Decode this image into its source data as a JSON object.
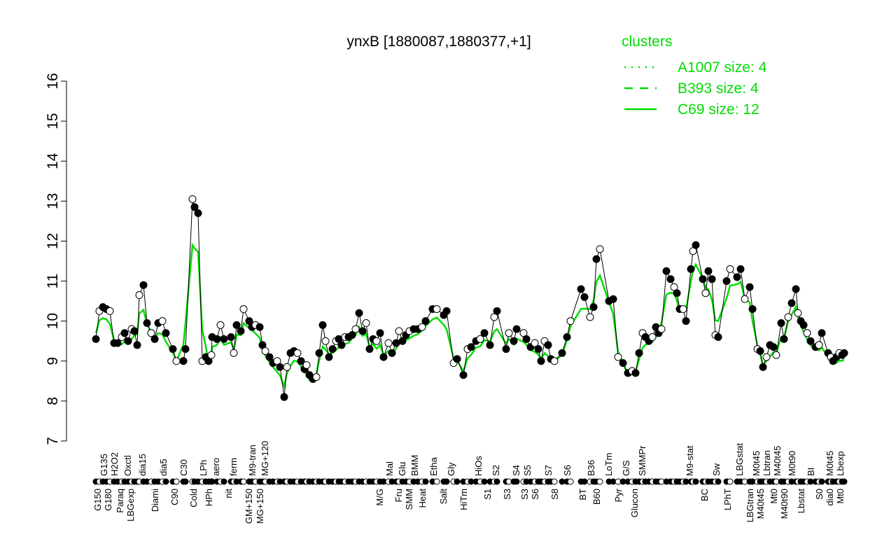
{
  "chart_data": {
    "type": "line",
    "title": "ynxB [1880087,1880377,+1]",
    "xlabel": "",
    "ylabel": "",
    "ylim": [
      7,
      16
    ],
    "yticks": [
      7,
      8,
      9,
      10,
      11,
      12,
      13,
      14,
      15,
      16
    ],
    "xlim": [
      0,
      1080
    ],
    "grid": false,
    "legend": {
      "title": "clusters",
      "placement": "top-right",
      "entries": [
        {
          "label": "A1007 size: 4",
          "style": "dotted"
        },
        {
          "label": "B393 size: 4",
          "style": "dashed"
        },
        {
          "label": "C69 size: 12",
          "style": "solid"
        }
      ]
    },
    "colors": {
      "cluster": "#00dd00",
      "points": "#000000"
    },
    "points": [
      [
        5,
        9.55
      ],
      [
        10,
        10.25
      ],
      [
        15,
        10.35
      ],
      [
        20,
        10.3
      ],
      [
        25,
        10.25
      ],
      [
        31,
        9.45
      ],
      [
        36,
        9.45
      ],
      [
        42,
        9.6
      ],
      [
        46,
        9.7
      ],
      [
        51,
        9.5
      ],
      [
        56,
        9.8
      ],
      [
        60,
        9.75
      ],
      [
        64,
        9.4
      ],
      [
        67,
        10.65
      ],
      [
        73,
        10.9
      ],
      [
        78,
        9.95
      ],
      [
        84,
        9.7
      ],
      [
        89,
        9.55
      ],
      [
        94,
        9.95
      ],
      [
        100,
        10.0
      ],
      [
        105,
        9.7
      ],
      [
        115,
        9.3
      ],
      [
        120,
        9.0
      ],
      [
        130,
        9.0
      ],
      [
        133,
        9.3
      ],
      [
        143,
        13.05
      ],
      [
        146,
        12.85
      ],
      [
        151,
        12.7
      ],
      [
        157,
        9.0
      ],
      [
        162,
        9.1
      ],
      [
        166,
        9.0
      ],
      [
        170,
        9.15
      ],
      [
        171,
        9.6
      ],
      [
        178,
        9.55
      ],
      [
        183,
        9.9
      ],
      [
        188,
        9.55
      ],
      [
        198,
        9.6
      ],
      [
        202,
        9.2
      ],
      [
        206,
        9.9
      ],
      [
        212,
        9.75
      ],
      [
        216,
        10.3
      ],
      [
        224,
        10.0
      ],
      [
        228,
        9.85
      ],
      [
        233,
        9.9
      ],
      [
        239,
        9.85
      ],
      [
        243,
        9.4
      ],
      [
        247,
        9.25
      ],
      [
        253,
        9.1
      ],
      [
        258,
        8.95
      ],
      [
        264,
        9.0
      ],
      [
        268,
        8.85
      ],
      [
        274,
        8.1
      ],
      [
        278,
        8.85
      ],
      [
        283,
        9.2
      ],
      [
        288,
        9.25
      ],
      [
        293,
        9.2
      ],
      [
        298,
        9.0
      ],
      [
        303,
        8.8
      ],
      [
        306,
        8.9
      ],
      [
        310,
        8.65
      ],
      [
        315,
        8.55
      ],
      [
        320,
        8.6
      ],
      [
        324,
        9.2
      ],
      [
        329,
        9.9
      ],
      [
        333,
        9.5
      ],
      [
        338,
        9.1
      ],
      [
        343,
        9.3
      ],
      [
        348,
        9.5
      ],
      [
        352,
        9.55
      ],
      [
        356,
        9.4
      ],
      [
        361,
        9.6
      ],
      [
        366,
        9.6
      ],
      [
        371,
        9.65
      ],
      [
        376,
        9.8
      ],
      [
        381,
        10.2
      ],
      [
        386,
        9.75
      ],
      [
        391,
        9.95
      ],
      [
        396,
        9.3
      ],
      [
        401,
        9.55
      ],
      [
        406,
        9.5
      ],
      [
        411,
        9.7
      ],
      [
        416,
        9.1
      ],
      [
        423,
        9.45
      ],
      [
        428,
        9.2
      ],
      [
        434,
        9.45
      ],
      [
        438,
        9.75
      ],
      [
        443,
        9.5
      ],
      [
        448,
        9.65
      ],
      [
        453,
        9.75
      ],
      [
        459,
        9.8
      ],
      [
        465,
        9.8
      ],
      [
        471,
        9.85
      ],
      [
        476,
        10.0
      ],
      [
        486,
        10.3
      ],
      [
        492,
        10.3
      ],
      [
        502,
        10.15
      ],
      [
        506,
        10.25
      ],
      [
        516,
        8.95
      ],
      [
        521,
        9.05
      ],
      [
        530,
        8.65
      ],
      [
        536,
        9.3
      ],
      [
        541,
        9.35
      ],
      [
        548,
        9.5
      ],
      [
        554,
        9.55
      ],
      [
        560,
        9.7
      ],
      [
        568,
        9.4
      ],
      [
        574,
        10.1
      ],
      [
        578,
        10.25
      ],
      [
        591,
        9.3
      ],
      [
        595,
        9.7
      ],
      [
        602,
        9.5
      ],
      [
        606,
        9.8
      ],
      [
        616,
        9.7
      ],
      [
        620,
        9.55
      ],
      [
        626,
        9.35
      ],
      [
        632,
        9.45
      ],
      [
        637,
        9.3
      ],
      [
        641,
        9.0
      ],
      [
        646,
        9.5
      ],
      [
        651,
        9.4
      ],
      [
        655,
        9.05
      ],
      [
        660,
        9.0
      ],
      [
        671,
        9.2
      ],
      [
        678,
        9.6
      ],
      [
        683,
        10.0
      ],
      [
        698,
        10.8
      ],
      [
        703,
        10.6
      ],
      [
        711,
        10.1
      ],
      [
        716,
        10.35
      ],
      [
        720,
        11.55
      ],
      [
        725,
        11.8
      ],
      [
        738,
        10.5
      ],
      [
        744,
        10.55
      ],
      [
        751,
        9.1
      ],
      [
        758,
        8.95
      ],
      [
        765,
        8.7
      ],
      [
        771,
        8.75
      ],
      [
        776,
        8.7
      ],
      [
        781,
        9.2
      ],
      [
        786,
        9.7
      ],
      [
        790,
        9.6
      ],
      [
        795,
        9.5
      ],
      [
        800,
        9.6
      ],
      [
        805,
        9.85
      ],
      [
        809,
        9.7
      ],
      [
        813,
        9.8
      ],
      [
        820,
        11.25
      ],
      [
        826,
        11.05
      ],
      [
        831,
        10.85
      ],
      [
        835,
        10.7
      ],
      [
        839,
        10.3
      ],
      [
        844,
        10.3
      ],
      [
        848,
        10.0
      ],
      [
        855,
        11.3
      ],
      [
        858,
        11.75
      ],
      [
        862,
        11.9
      ],
      [
        872,
        11.05
      ],
      [
        876,
        10.7
      ],
      [
        880,
        11.25
      ],
      [
        885,
        11.05
      ],
      [
        890,
        9.65
      ],
      [
        894,
        9.6
      ],
      [
        906,
        11.0
      ],
      [
        911,
        11.3
      ],
      [
        921,
        11.1
      ],
      [
        926,
        11.3
      ],
      [
        932,
        10.55
      ],
      [
        939,
        10.85
      ],
      [
        943,
        10.3
      ],
      [
        950,
        9.3
      ],
      [
        954,
        9.25
      ],
      [
        958,
        8.85
      ],
      [
        963,
        9.1
      ],
      [
        968,
        9.4
      ],
      [
        973,
        9.35
      ],
      [
        977,
        9.15
      ],
      [
        984,
        9.95
      ],
      [
        988,
        9.55
      ],
      [
        994,
        10.1
      ],
      [
        999,
        10.45
      ],
      [
        1005,
        10.8
      ],
      [
        1008,
        10.2
      ],
      [
        1012,
        10.0
      ],
      [
        1016,
        9.9
      ],
      [
        1021,
        9.7
      ],
      [
        1026,
        9.5
      ],
      [
        1033,
        9.35
      ],
      [
        1038,
        9.4
      ],
      [
        1042,
        9.7
      ],
      [
        1051,
        9.2
      ],
      [
        1055,
        9.1
      ],
      [
        1058,
        9.0
      ],
      [
        1063,
        9.1
      ],
      [
        1067,
        9.2
      ],
      [
        1071,
        9.15
      ],
      [
        1074,
        9.2
      ]
    ],
    "xlabels_top": [
      [
        "G135",
        17
      ],
      [
        "H2O2",
        26
      ],
      [
        "Oxctl",
        51
      ],
      [
        "dia15",
        72
      ],
      [
        "dia5",
        102
      ],
      [
        "C30",
        131
      ],
      [
        "LPh",
        159
      ],
      [
        "aero",
        177
      ],
      [
        "ferm",
        202
      ],
      [
        "M9-tran",
        229
      ],
      [
        "MG+120",
        247
      ],
      [
        "Mal",
        425
      ],
      [
        "Glu",
        443
      ],
      [
        "BMM",
        461
      ],
      [
        "Etha",
        488
      ],
      [
        "Gly",
        513
      ],
      [
        "HiOs",
        552
      ],
      [
        "S2",
        577
      ],
      [
        "S4",
        606
      ],
      [
        "S5",
        622
      ],
      [
        "S7",
        652
      ],
      [
        "S6",
        679
      ],
      [
        "B36",
        713
      ],
      [
        "LoTm",
        738
      ],
      [
        "G/S",
        763
      ],
      [
        "SMMPr",
        786
      ],
      [
        "M9-stat",
        854
      ],
      [
        "Sw",
        892
      ],
      [
        "LBGstat",
        925
      ],
      [
        "M0t45",
        949
      ],
      [
        "Lbtran",
        959
      ],
      [
        "M40t45",
        970
      ],
      [
        "M0t90",
        1000
      ],
      [
        "BI",
        1027
      ],
      [
        "M0t45",
        1054
      ],
      [
        "Lbexp",
        1065
      ]
    ],
    "xlabels_bottom": [
      [
        "G150",
        8
      ],
      [
        "G180",
        18
      ],
      [
        "Paraq",
        40
      ],
      [
        "LBGexp",
        52
      ],
      [
        "Diami",
        90
      ],
      [
        "C90",
        118
      ],
      [
        "Cold",
        145
      ],
      [
        "HPh",
        167
      ],
      [
        "nit",
        195
      ],
      [
        "GM+150",
        224
      ],
      [
        "MG+150",
        240
      ],
      [
        "M/G",
        411
      ],
      [
        "Fru",
        438
      ],
      [
        "SMM",
        452
      ],
      [
        "Heat",
        472
      ],
      [
        "Salt",
        502
      ],
      [
        "HiTm",
        531
      ],
      [
        "S1",
        565
      ],
      [
        "S3",
        593
      ],
      [
        "S3",
        618
      ],
      [
        "S6",
        633
      ],
      [
        "S8",
        661
      ],
      [
        "BT",
        701
      ],
      [
        "B60",
        721
      ],
      [
        "Pyr",
        752
      ],
      [
        "Glucon",
        775
      ],
      [
        "BC",
        875
      ],
      [
        "LPhT",
        908
      ],
      [
        "LBGtran",
        940
      ],
      [
        "M40t45",
        952
      ],
      [
        "Mt0",
        974
      ],
      [
        "M40t90",
        986
      ],
      [
        "Lbstat",
        1013
      ],
      [
        "S0",
        1039
      ],
      [
        "dia0",
        1053
      ],
      [
        "Mt0",
        1065
      ]
    ]
  }
}
